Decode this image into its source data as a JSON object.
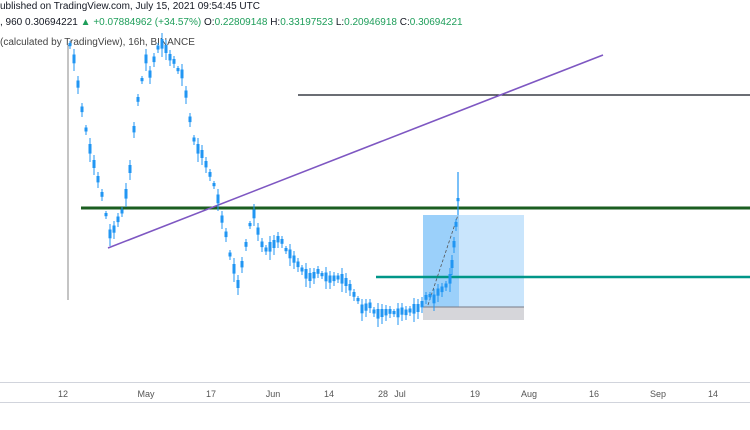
{
  "header": {
    "published": "ublished on TradingView.com, July 15, 2021 09:54:45 UTC",
    "symbol_prefix": ", 960",
    "last_price": "0.30694221",
    "change_arrow": "▲",
    "change": "+0.07884962 (+34.57%)",
    "o_label": "O:",
    "o_value": "0.22809148",
    "h_label": "H:",
    "h_value": "0.33197523",
    "l_label": "L:",
    "l_value": "0.20946918",
    "c_label": "C:",
    "c_value": "0.30694221",
    "indicator": "(calculated by TradingView), 16h, BINANCE"
  },
  "x_axis": {
    "ticks": [
      {
        "label": "12",
        "key": "t12"
      },
      {
        "label": "May",
        "key": "may"
      },
      {
        "label": "17",
        "key": "t17"
      },
      {
        "label": "Jun",
        "key": "jun"
      },
      {
        "label": "14",
        "key": "t14a"
      },
      {
        "label": "28",
        "key": "t28"
      },
      {
        "label": "Jul",
        "key": "jul"
      },
      {
        "label": "19",
        "key": "t19"
      },
      {
        "label": "Aug",
        "key": "aug"
      },
      {
        "label": "16",
        "key": "t16"
      },
      {
        "label": "Sep",
        "key": "sep"
      },
      {
        "label": "14",
        "key": "t14b"
      }
    ]
  },
  "colors": {
    "candle": "#2196f3",
    "trend_line": "#7e57c2",
    "support_green": "#1b5e20",
    "support_teal": "#009688",
    "resistance_black": "#131722",
    "projection_fill": "#90caf9",
    "projection_light": "#bbdefb",
    "stop_gray": "#b0b0b8"
  }
}
